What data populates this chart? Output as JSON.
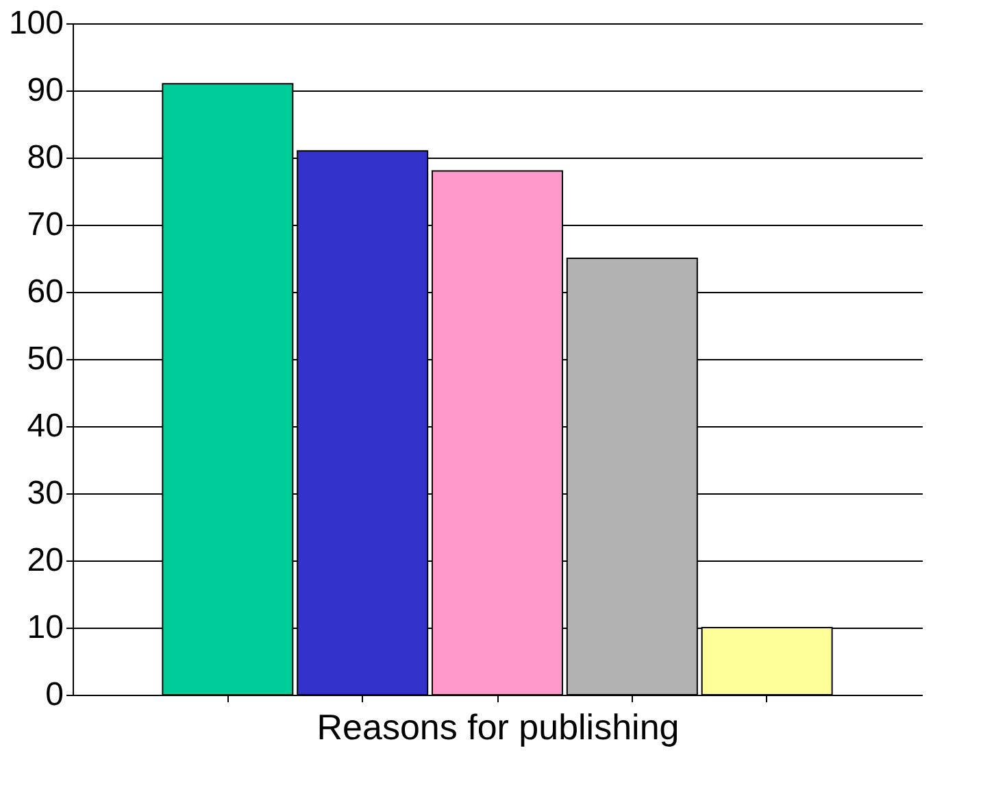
{
  "chart_data": {
    "type": "bar",
    "xlabel": "Reasons for publishing",
    "categories": [
      null,
      null,
      null,
      null,
      null
    ],
    "values": [
      91,
      81,
      78,
      65,
      10
    ],
    "colors": [
      "#00cc99",
      "#3333cc",
      "#ff99cc",
      "#b2b2b2",
      "#ffff99"
    ],
    "ylim": [
      0,
      100
    ],
    "yticks": [
      0,
      10,
      20,
      30,
      40,
      50,
      60,
      70,
      80,
      90,
      100
    ],
    "grid": "y"
  }
}
